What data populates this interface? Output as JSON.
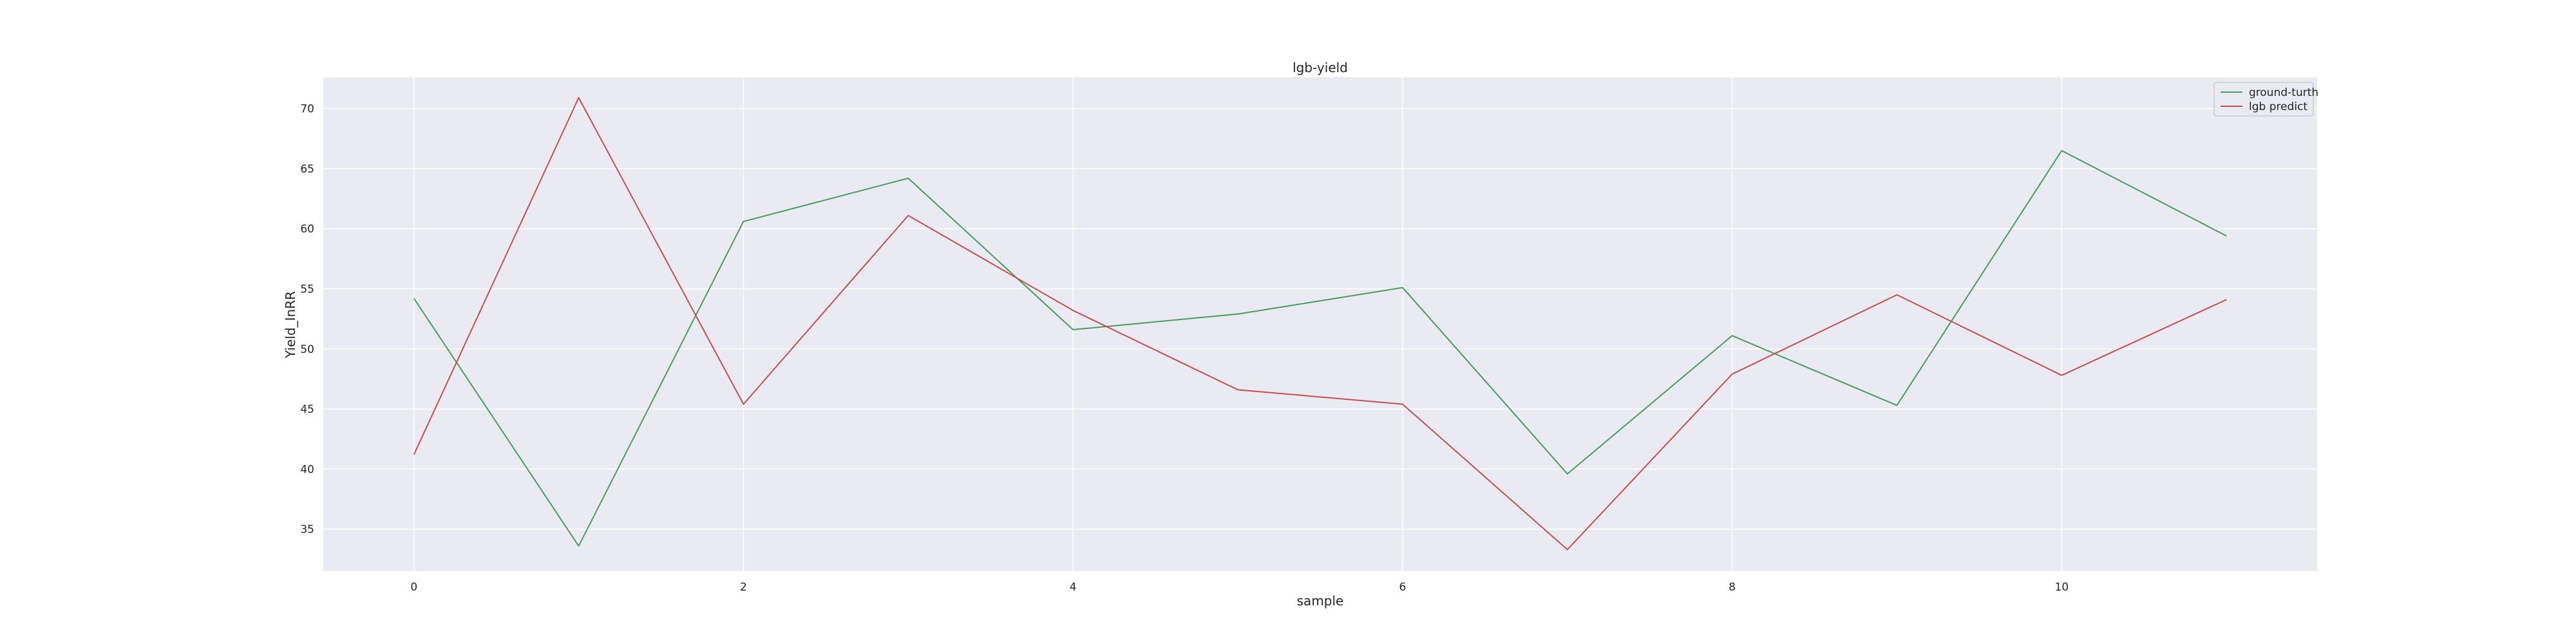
{
  "chart_data": {
    "type": "line",
    "title": "lgb-yield",
    "xlabel": "sample",
    "ylabel": "Yield_InRR",
    "x": [
      0,
      1,
      2,
      3,
      4,
      5,
      6,
      7,
      8,
      9,
      10,
      11
    ],
    "xticks": [
      0,
      2,
      4,
      6,
      8,
      10
    ],
    "yticks": [
      35,
      40,
      45,
      50,
      55,
      60,
      65,
      70
    ],
    "xlim": [
      -0.55,
      11.55
    ],
    "ylim": [
      31.5,
      72.6
    ],
    "grid": true,
    "legend_position": "top-right",
    "series": [
      {
        "name": "ground-turth",
        "color": "#4c9a5f",
        "values": [
          54.2,
          33.6,
          60.6,
          64.2,
          51.6,
          52.9,
          55.1,
          39.6,
          51.1,
          45.3,
          66.5,
          59.4
        ]
      },
      {
        "name": "lgb predict",
        "color": "#c44e52",
        "values": [
          41.2,
          70.9,
          45.4,
          61.1,
          53.2,
          46.6,
          45.4,
          33.3,
          47.9,
          54.5,
          47.8,
          54.1
        ]
      }
    ]
  }
}
